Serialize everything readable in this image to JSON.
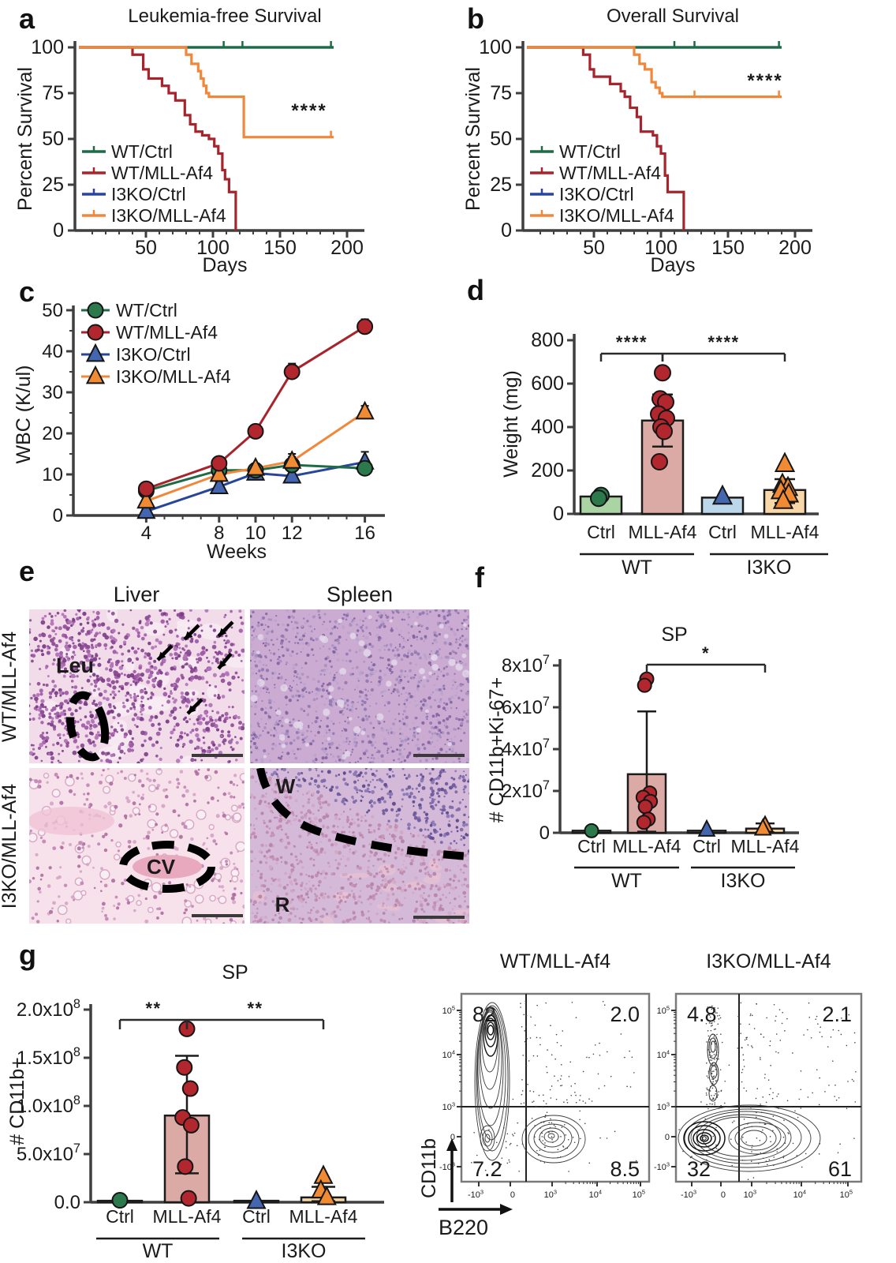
{
  "panel_labels": {
    "a": "a",
    "b": "b",
    "c": "c",
    "d": "d",
    "e": "e",
    "f": "f",
    "g": "g"
  },
  "colors": {
    "green": "#1e6b45",
    "red": "#a8242c",
    "blue": "#27459c",
    "orange": "#f0873a",
    "marker_green": "#2c7a4b",
    "marker_red": "#b2262e",
    "marker_blue": "#4466b0",
    "marker_orange": "#f08a33",
    "bar_green": "#abd4a5",
    "bar_pink": "#dcaaa4",
    "bar_blue": "#bdd7ea",
    "bar_orange": "#f8d8a8",
    "axis": "#3f3f3f",
    "text": "#1a1a1a"
  },
  "chart_data": [
    {
      "id": "a",
      "type": "line",
      "subtype": "kaplan-meier",
      "title": "Leukemia-free Survival",
      "xlabel": "Days",
      "ylabel": "Percent Survival",
      "xticks": [
        50,
        100,
        150,
        200
      ],
      "yticks": [
        0,
        25,
        50,
        75,
        100
      ],
      "xlim": [
        0,
        210
      ],
      "ylim": [
        0,
        100
      ],
      "significance": "****",
      "legend_position": "inside-lower-left",
      "series": [
        {
          "name": "WT/Ctrl",
          "color": "#1e6b45",
          "start": 100,
          "steps": [],
          "end": 190,
          "censors": [
            108,
            122,
            188
          ]
        },
        {
          "name": "WT/MLL-Af4",
          "color": "#a8242c",
          "start": 100,
          "steps": [
            [
              40,
              96
            ],
            [
              48,
              88
            ],
            [
              52,
              83
            ],
            [
              62,
              79
            ],
            [
              67,
              75
            ],
            [
              72,
              71
            ],
            [
              79,
              63
            ],
            [
              83,
              58
            ],
            [
              87,
              54
            ],
            [
              92,
              52
            ],
            [
              97,
              50
            ],
            [
              101,
              46
            ],
            [
              104,
              42
            ],
            [
              107,
              33
            ],
            [
              109,
              28
            ],
            [
              112,
              21
            ],
            [
              117,
              0
            ]
          ],
          "end": 117,
          "censors": []
        },
        {
          "name": "I3KO/Ctrl",
          "color": "#27459c",
          "start": 100,
          "steps": [],
          "end": 190,
          "censors": []
        },
        {
          "name": "I3KO/MLL-Af4",
          "color": "#f0873a",
          "start": 100,
          "steps": [
            [
              80,
              96
            ],
            [
              84,
              91
            ],
            [
              89,
              87
            ],
            [
              91,
              83
            ],
            [
              93,
              79
            ],
            [
              95,
              75
            ],
            [
              97,
              73
            ],
            [
              123,
              51
            ]
          ],
          "end": 190,
          "censors": [
            188
          ]
        }
      ]
    },
    {
      "id": "b",
      "type": "line",
      "subtype": "kaplan-meier",
      "title": "Overall Survival",
      "xlabel": "Days",
      "ylabel": "Percent Survival",
      "xticks": [
        50,
        100,
        150,
        200
      ],
      "yticks": [
        0,
        25,
        50,
        75,
        100
      ],
      "xlim": [
        0,
        210
      ],
      "ylim": [
        0,
        100
      ],
      "significance": "****",
      "legend_position": "inside-lower-left",
      "series": [
        {
          "name": "WT/Ctrl",
          "color": "#1e6b45",
          "start": 100,
          "steps": [],
          "end": 190,
          "censors": [
            110,
            125,
            188
          ]
        },
        {
          "name": "WT/MLL-Af4",
          "color": "#a8242c",
          "start": 100,
          "steps": [
            [
              42,
              96
            ],
            [
              47,
              88
            ],
            [
              50,
              84
            ],
            [
              62,
              80
            ],
            [
              70,
              76
            ],
            [
              73,
              73
            ],
            [
              77,
              67
            ],
            [
              82,
              62
            ],
            [
              85,
              54
            ],
            [
              94,
              52
            ],
            [
              97,
              46
            ],
            [
              100,
              42
            ],
            [
              103,
              30
            ],
            [
              105,
              21
            ],
            [
              117,
              0
            ]
          ],
          "end": 117,
          "censors": []
        },
        {
          "name": "I3KO/Ctrl",
          "color": "#27459c",
          "start": 100,
          "steps": [],
          "end": 190,
          "censors": []
        },
        {
          "name": "I3KO/MLL-Af4",
          "color": "#f0873a",
          "start": 100,
          "steps": [
            [
              80,
              96
            ],
            [
              84,
              91
            ],
            [
              88,
              88
            ],
            [
              93,
              81
            ],
            [
              96,
              78
            ],
            [
              99,
              75
            ],
            [
              101,
              73
            ]
          ],
          "end": 190,
          "censors": [
            125,
            188
          ]
        }
      ]
    },
    {
      "id": "c",
      "type": "line",
      "subtype": "timecourse",
      "title": "",
      "xlabel": "Weeks",
      "ylabel": "WBC (K/ul)",
      "x": [
        4,
        8,
        10,
        12,
        16
      ],
      "xticks": [
        4,
        8,
        10,
        12,
        16
      ],
      "yticks": [
        0,
        10,
        20,
        30,
        40,
        50
      ],
      "ylim": [
        0,
        50
      ],
      "series": [
        {
          "name": "WT/Ctrl",
          "marker": "circle",
          "color": "#1e6b45",
          "fill": "#2c7a4b",
          "values": [
            6,
            11,
            11,
            12.3,
            11.5
          ],
          "err": [
            1,
            1.2,
            1.2,
            2,
            1.5
          ]
        },
        {
          "name": "WT/MLL-Af4",
          "marker": "circle",
          "color": "#a8242c",
          "fill": "#b2262e",
          "values": [
            6.5,
            12.7,
            20.5,
            35,
            46
          ],
          "err": [
            1,
            1.2,
            1.5,
            2,
            1.8
          ]
        },
        {
          "name": "I3KO/Ctrl",
          "marker": "triangle",
          "color": "#27459c",
          "fill": "#4466b0",
          "values": [
            1,
            7,
            10.3,
            9.6,
            13
          ],
          "err": [
            0.5,
            1,
            1.2,
            1.5,
            2.5
          ]
        },
        {
          "name": "I3KO/MLL-Af4",
          "marker": "triangle",
          "color": "#f0873a",
          "fill": "#f08a33",
          "values": [
            3.5,
            10,
            11.5,
            13.2,
            25.2
          ],
          "err": [
            0.8,
            1.2,
            1.2,
            1.8,
            1.5
          ]
        }
      ]
    },
    {
      "id": "d",
      "type": "bar",
      "title": "",
      "ylabel": "Weight (mg)",
      "yticks": [
        {
          "v": 0,
          "label": "0"
        },
        {
          "v": 200,
          "label": "200"
        },
        {
          "v": 400,
          "label": "400"
        },
        {
          "v": 600,
          "label": "600"
        },
        {
          "v": 800,
          "label": "800"
        }
      ],
      "groups": [
        "WT",
        "I3KO"
      ],
      "bars": [
        {
          "label": "Ctrl",
          "group": "WT",
          "value": 80,
          "fill": "#abd4a5",
          "marker": "circle",
          "marker_color": "#2c7a4b",
          "points": [
            85,
            72
          ],
          "err": null
        },
        {
          "label": "MLL-Af4",
          "group": "WT",
          "value": 430,
          "fill": "#dcaaa4",
          "marker": "circle",
          "marker_color": "#b2262e",
          "points": [
            650,
            530,
            515,
            460,
            440,
            400,
            380,
            240
          ],
          "err": [
            310,
            550
          ]
        },
        {
          "label": "Ctrl",
          "group": "I3KO",
          "value": 75,
          "fill": "#bdd7ea",
          "marker": "triangle",
          "marker_color": "#4466b0",
          "points": [
            80
          ],
          "err": null
        },
        {
          "label": "MLL-Af4",
          "group": "I3KO",
          "value": 110,
          "fill": "#f8d8a8",
          "marker": "triangle",
          "marker_color": "#f08a33",
          "points": [
            230,
            135,
            120,
            105,
            90,
            60
          ],
          "err": [
            50,
            160
          ]
        }
      ],
      "sig": [
        {
          "from": 0,
          "to": 1,
          "label": "****"
        },
        {
          "from": 1,
          "to": 3,
          "label": "****"
        }
      ]
    },
    {
      "id": "f",
      "type": "bar",
      "title": "SP",
      "ylabel": "# CD11b+Ki-67+",
      "yticks": [
        {
          "v": 0,
          "label": "0"
        },
        {
          "v": 2,
          "label": "2x10^7"
        },
        {
          "v": 4,
          "label": "4x10^7"
        },
        {
          "v": 6,
          "label": "6x10^7"
        },
        {
          "v": 8,
          "label": "8x10^7"
        }
      ],
      "unit_note": "values in 1e7 cells",
      "groups": [
        "WT",
        "I3KO"
      ],
      "bars": [
        {
          "label": "Ctrl",
          "group": "WT",
          "value": 0.1,
          "fill": "#abd4a5",
          "marker": "circle",
          "marker_color": "#2c7a4b",
          "points": [
            0.1
          ],
          "err": null
        },
        {
          "label": "MLL-Af4",
          "group": "WT",
          "value": 2.8,
          "fill": "#dcaaa4",
          "marker": "circle",
          "marker_color": "#b2262e",
          "points": [
            7.35,
            7.05,
            1.9,
            1.7,
            1.5,
            1.25,
            0.65,
            0.5
          ],
          "err": [
            0.05,
            5.8
          ]
        },
        {
          "label": "Ctrl",
          "group": "I3KO",
          "value": 0.1,
          "fill": "#bdd7ea",
          "marker": "triangle",
          "marker_color": "#4466b0",
          "points": [
            0.15
          ],
          "err": null
        },
        {
          "label": "MLL-Af4",
          "group": "I3KO",
          "value": 0.2,
          "fill": "#f8d8a8",
          "marker": "triangle",
          "marker_color": "#f08a33",
          "points": [
            0.35,
            0.2
          ],
          "err": [
            0.02,
            0.45
          ]
        }
      ],
      "sig": [
        {
          "from": 1,
          "to": 3,
          "label": "*"
        }
      ]
    },
    {
      "id": "g",
      "type": "bar",
      "title": "SP",
      "ylabel": "# CD11b+",
      "yticks": [
        {
          "v": 0,
          "label": "0.0"
        },
        {
          "v": 0.5,
          "label": "5.0x10^7"
        },
        {
          "v": 1,
          "label": "1.0x10^8"
        },
        {
          "v": 1.5,
          "label": "1.5x10^8"
        },
        {
          "v": 2,
          "label": "2.0x10^8"
        }
      ],
      "unit_note": "values in 1e8 cells",
      "groups": [
        "WT",
        "I3KO"
      ],
      "bars": [
        {
          "label": "Ctrl",
          "group": "WT",
          "value": 0.015,
          "fill": "#abd4a5",
          "marker": "circle",
          "marker_color": "#2c7a4b",
          "points": [
            0.02
          ],
          "err": null
        },
        {
          "label": "MLL-Af4",
          "group": "WT",
          "value": 0.9,
          "fill": "#dcaaa4",
          "marker": "circle",
          "marker_color": "#b2262e",
          "points": [
            1.8,
            1.4,
            1.18,
            0.88,
            0.8,
            0.37,
            0.04
          ],
          "err": [
            0.3,
            1.52
          ]
        },
        {
          "label": "Ctrl",
          "group": "I3KO",
          "value": 0.015,
          "fill": "#bdd7ea",
          "marker": "triangle",
          "marker_color": "#4466b0",
          "points": [
            0.01
          ],
          "err": null
        },
        {
          "label": "MLL-Af4",
          "group": "I3KO",
          "value": 0.05,
          "fill": "#f8d8a8",
          "marker": "triangle",
          "marker_color": "#f08a33",
          "points": [
            0.27,
            0.12,
            0.05
          ],
          "err": [
            0.01,
            0.16
          ]
        }
      ],
      "sig": [
        {
          "from": 0,
          "to": 1,
          "label": "**"
        },
        {
          "from": 1,
          "to": 3,
          "label": "**"
        }
      ]
    },
    {
      "id": "flow",
      "type": "scatter",
      "subtype": "flow-cytometry-contour",
      "xlabel": "B220",
      "ylabel": "CD11b",
      "xticks": [
        "-10^3",
        "0",
        "10^3",
        "10^4",
        "10^5"
      ],
      "yticks": [
        "10^5",
        "10^4",
        "10^3",
        "0",
        "-10^3"
      ],
      "plots": [
        {
          "title": "WT/MLL-Af4",
          "quadrants": {
            "top_left": "82",
            "top_right": "2.0",
            "bottom_left": "7.2",
            "bottom_right": "8.5"
          }
        },
        {
          "title": "I3KO/MLL-Af4",
          "quadrants": {
            "top_left": "4.8",
            "top_right": "2.1",
            "bottom_left": "32",
            "bottom_right": "61"
          }
        }
      ]
    }
  ],
  "panel_e": {
    "col_titles": [
      "Liver",
      "Spleen"
    ],
    "row_titles": [
      "WT/MLL-Af4",
      "I3KO/MLL-Af4"
    ],
    "annotations": {
      "leu": "Leu",
      "cv": "CV",
      "w": "W",
      "r": "R"
    }
  }
}
